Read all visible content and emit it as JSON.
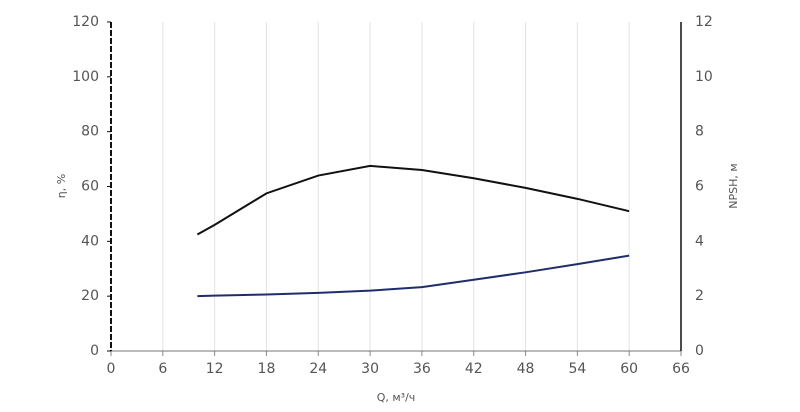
{
  "chart_data": {
    "type": "line",
    "x_label": "Q, м³/ч",
    "y_label": "η, %",
    "y2_label": "NPSH, м",
    "x": [
      10,
      12,
      18,
      24,
      30,
      36,
      42,
      48,
      54,
      60
    ],
    "series": [
      {
        "color": "#111111",
        "values": [
          42.5,
          46,
          57.5,
          64,
          67.5,
          66,
          63,
          59.5,
          55.5,
          51
        ]
      },
      {
        "color": "#1f2d6b",
        "axis": "y2",
        "values": [
          2.0,
          2.02,
          2.06,
          2.12,
          2.2,
          2.33,
          2.6,
          2.87,
          3.17,
          3.48
        ]
      }
    ],
    "xlim": [
      0,
      66
    ],
    "xticks": [
      0,
      6,
      12,
      18,
      24,
      30,
      36,
      42,
      48,
      54,
      60,
      66
    ],
    "ylim": [
      0,
      120
    ],
    "yticks": [
      0,
      20,
      40,
      60,
      80,
      100,
      120
    ],
    "y2lim": [
      0,
      12
    ],
    "y2ticks": [
      0,
      2,
      4,
      6,
      8,
      10,
      12
    ],
    "grid": true
  }
}
